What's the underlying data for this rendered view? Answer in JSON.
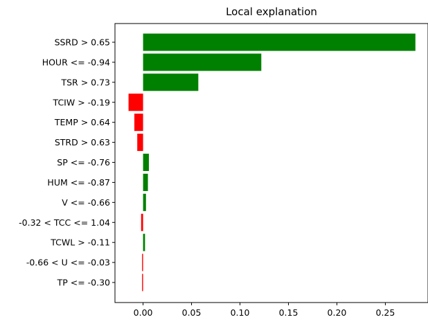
{
  "chart_data": {
    "type": "bar",
    "orientation": "horizontal",
    "title": "Local explanation",
    "xlabel": "",
    "ylabel": "",
    "xlim": [
      -0.029,
      0.294
    ],
    "xticks": [
      0.0,
      0.05,
      0.1,
      0.15,
      0.2,
      0.25
    ],
    "xtick_labels": [
      "0.00",
      "0.05",
      "0.10",
      "0.15",
      "0.20",
      "0.25"
    ],
    "grid": false,
    "legend": "none",
    "colors": {
      "positive": "#008000",
      "negative": "#ff0000"
    },
    "categories": [
      "SSRD > 0.65",
      "HOUR <= -0.94",
      "TSR > 0.73",
      "TCIW > -0.19",
      "TEMP > 0.64",
      "STRD > 0.63",
      "SP <= -0.76",
      "HUM <= -0.87",
      "V <= -0.66",
      "-0.32 < TCC <= 1.04",
      "TCWL > -0.11",
      "-0.66 < U <= -0.03",
      "TP <= -0.30"
    ],
    "values": [
      0.281,
      0.122,
      0.057,
      -0.015,
      -0.009,
      -0.006,
      0.006,
      0.005,
      0.003,
      -0.002,
      0.002,
      -0.001,
      -0.001
    ]
  }
}
